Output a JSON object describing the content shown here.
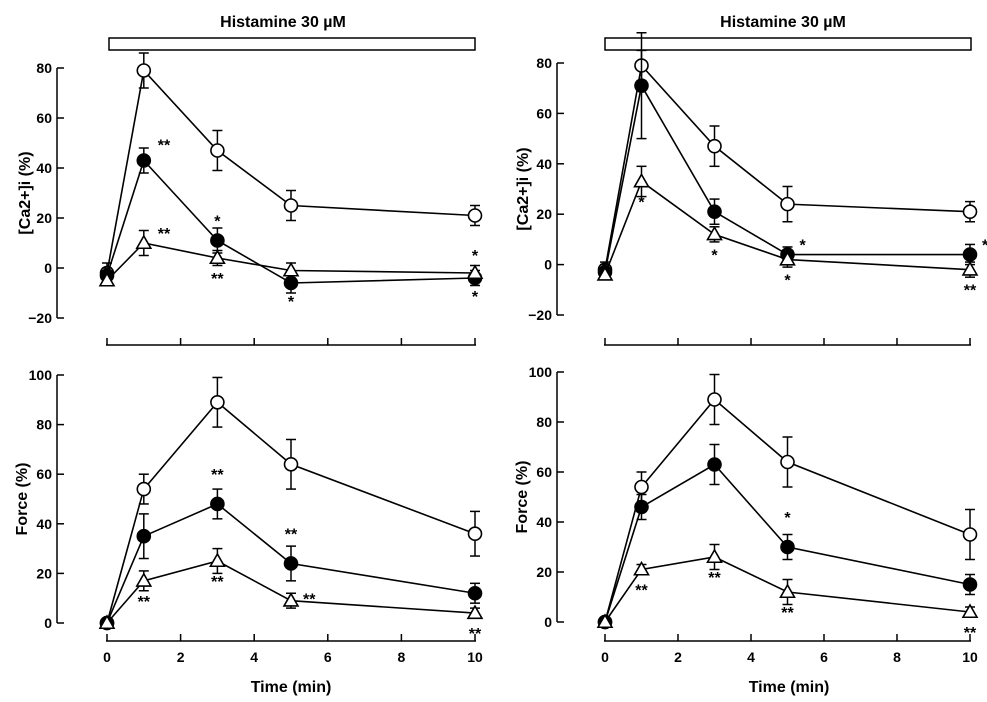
{
  "chart_data": [
    {
      "type": "line",
      "treatment_label": "Histamine 30 µM",
      "ylabel": "[Ca2+]i (%)",
      "xlabel": "",
      "ylim": [
        -20,
        80
      ],
      "yticks": [
        "−20",
        "0",
        "20",
        "40",
        "60",
        "80"
      ],
      "xlim": [
        0,
        10
      ],
      "xticks": [],
      "grid": false,
      "series": [
        {
          "marker": "open-circle",
          "x": [
            0,
            1,
            3,
            5,
            10
          ],
          "y": [
            -2,
            79,
            47,
            25,
            21
          ],
          "err": [
            4,
            7,
            8,
            6,
            4
          ],
          "sig": [
            "",
            "",
            "",
            "",
            ""
          ]
        },
        {
          "marker": "filled-circle",
          "x": [
            0,
            1,
            3,
            5,
            10
          ],
          "y": [
            -3,
            43,
            11,
            -6,
            -4
          ],
          "err": [
            3,
            5,
            5,
            4,
            3
          ],
          "sig": [
            "",
            "**",
            "*",
            "*",
            "*"
          ]
        },
        {
          "marker": "open-triangle",
          "x": [
            0,
            1,
            3,
            5,
            10
          ],
          "y": [
            -5,
            10,
            4,
            -1,
            -2
          ],
          "err": [
            2,
            5,
            3,
            3,
            3
          ],
          "sig": [
            "",
            "**",
            "**",
            "",
            "*"
          ]
        }
      ]
    },
    {
      "type": "line",
      "treatment_label": "Histamine 30 µM",
      "ylabel": "[Ca2+]i (%)",
      "xlabel": "",
      "ylim": [
        -20,
        80
      ],
      "yticks": [
        "−20",
        "0",
        "20",
        "40",
        "60",
        "80"
      ],
      "xlim": [
        0,
        10
      ],
      "xticks": [],
      "grid": false,
      "series": [
        {
          "marker": "open-circle",
          "x": [
            0,
            1,
            3,
            5,
            10
          ],
          "y": [
            -2,
            79,
            47,
            24,
            21
          ],
          "err": [
            3,
            6,
            8,
            7,
            4
          ],
          "sig": [
            "",
            "",
            "",
            "",
            ""
          ]
        },
        {
          "marker": "filled-circle",
          "x": [
            0,
            1,
            3,
            5,
            10
          ],
          "y": [
            -3,
            71,
            21,
            4,
            4
          ],
          "err": [
            3,
            21,
            5,
            3,
            4
          ],
          "sig": [
            "",
            "",
            "",
            "*",
            "*"
          ]
        },
        {
          "marker": "open-triangle",
          "x": [
            0,
            1,
            3,
            5,
            10
          ],
          "y": [
            -4,
            33,
            12,
            2,
            -2
          ],
          "err": [
            2,
            6,
            3,
            3,
            3
          ],
          "sig": [
            "",
            "*",
            "*",
            "*",
            "**"
          ]
        }
      ]
    },
    {
      "type": "line",
      "ylabel": "Force (%)",
      "xlabel": "Time (min)",
      "ylim": [
        0,
        100
      ],
      "yticks": [
        "0",
        "20",
        "40",
        "60",
        "80",
        "100"
      ],
      "xlim": [
        0,
        10
      ],
      "xticks": [
        "0",
        "2",
        "4",
        "6",
        "8",
        "10"
      ],
      "grid": false,
      "series": [
        {
          "marker": "open-circle",
          "x": [
            0,
            1,
            3,
            5,
            10
          ],
          "y": [
            0,
            54,
            89,
            64,
            36
          ],
          "err": [
            0,
            6,
            10,
            10,
            9
          ],
          "sig": [
            "",
            "",
            "",
            "",
            ""
          ]
        },
        {
          "marker": "filled-circle",
          "x": [
            0,
            1,
            3,
            5,
            10
          ],
          "y": [
            0,
            35,
            48,
            24,
            12
          ],
          "err": [
            0,
            9,
            6,
            7,
            4
          ],
          "sig": [
            "",
            "",
            "**",
            "**",
            ""
          ]
        },
        {
          "marker": "open-triangle",
          "x": [
            0,
            1,
            3,
            5,
            10
          ],
          "y": [
            0,
            17,
            25,
            9,
            4
          ],
          "err": [
            0,
            4,
            5,
            3,
            2
          ],
          "sig": [
            "",
            "**",
            "**",
            "**",
            "**"
          ]
        }
      ]
    },
    {
      "type": "line",
      "ylabel": "Force (%)",
      "xlabel": "Time (min)",
      "ylim": [
        0,
        100
      ],
      "yticks": [
        "0",
        "20",
        "40",
        "60",
        "80",
        "100"
      ],
      "xlim": [
        0,
        10
      ],
      "xticks": [
        "0",
        "2",
        "4",
        "6",
        "8",
        "10"
      ],
      "grid": false,
      "series": [
        {
          "marker": "open-circle",
          "x": [
            0,
            1,
            3,
            5,
            10
          ],
          "y": [
            0,
            54,
            89,
            64,
            35
          ],
          "err": [
            0,
            6,
            10,
            10,
            10
          ],
          "sig": [
            "",
            "",
            "",
            "",
            ""
          ]
        },
        {
          "marker": "filled-circle",
          "x": [
            0,
            1,
            3,
            5,
            10
          ],
          "y": [
            0,
            46,
            63,
            30,
            15
          ],
          "err": [
            0,
            5,
            8,
            5,
            4
          ],
          "sig": [
            "",
            "",
            "",
            "*",
            ""
          ]
        },
        {
          "marker": "open-triangle",
          "x": [
            0,
            1,
            3,
            5,
            10
          ],
          "y": [
            0,
            21,
            26,
            12,
            4
          ],
          "err": [
            0,
            2,
            5,
            5,
            2
          ],
          "sig": [
            "",
            "**",
            "**",
            "**",
            "**"
          ]
        }
      ]
    }
  ]
}
